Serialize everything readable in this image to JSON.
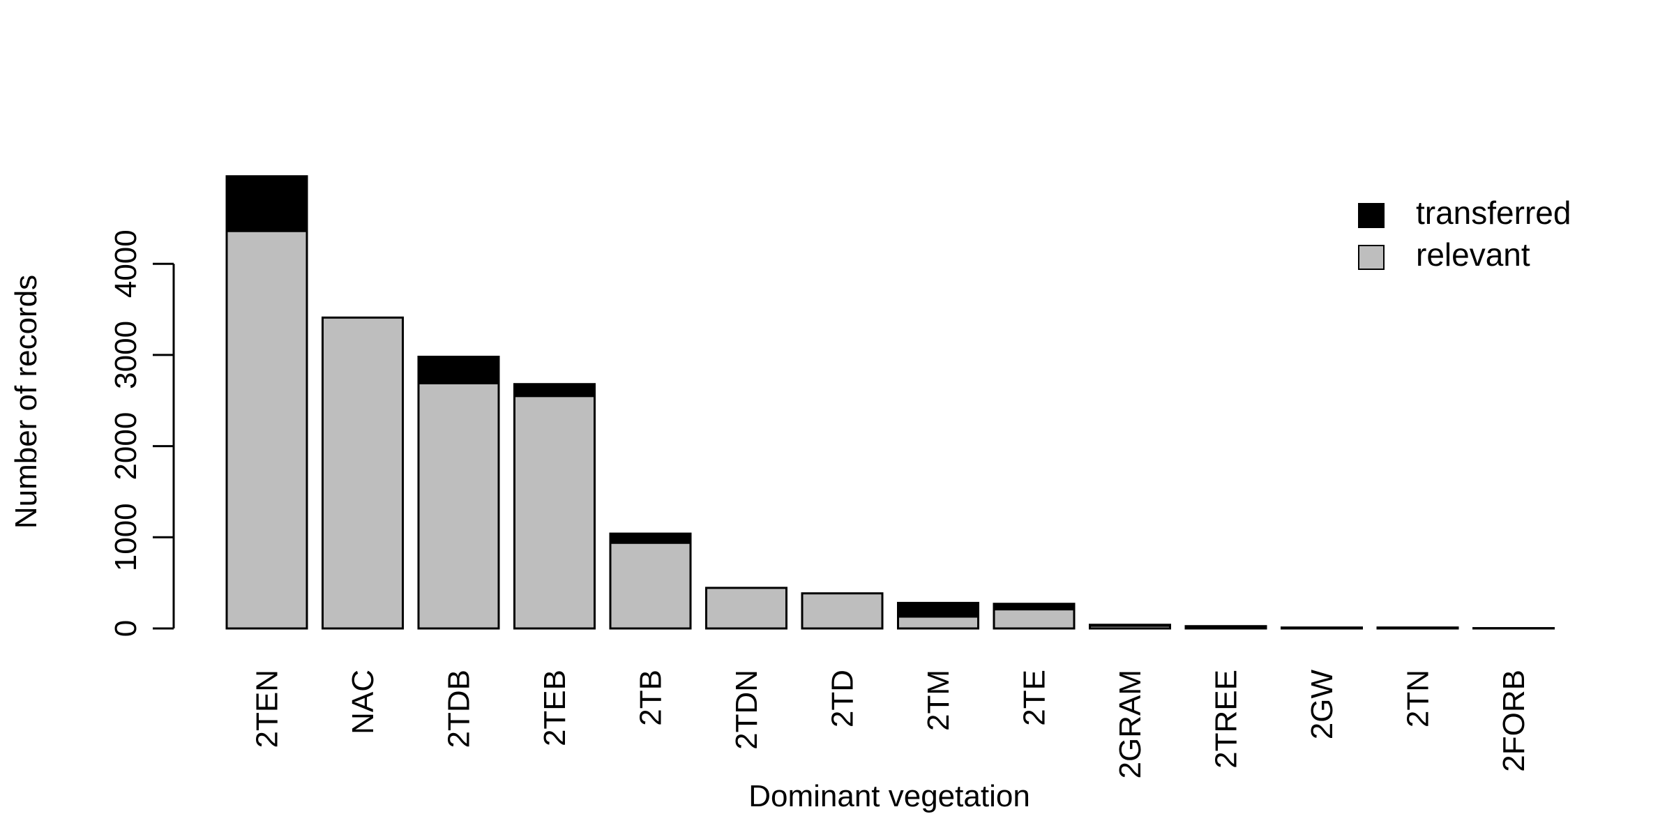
{
  "chart_data": {
    "type": "bar",
    "stacked": true,
    "xlabel": "Dominant vegetation",
    "ylabel": "Number of records",
    "ylim": [
      0,
      5000
    ],
    "yticks": [
      0,
      1000,
      2000,
      3000,
      4000
    ],
    "grid": false,
    "legend_position": "top-right",
    "categories": [
      "2TEN",
      "NAC",
      "2TDB",
      "2TEB",
      "2TB",
      "2TDN",
      "2TD",
      "2TM",
      "2TE",
      "2GRAM",
      "2TREE",
      "2GW",
      "2TN",
      "2FORB"
    ],
    "series": [
      {
        "name": "relevant",
        "color": "#bebebe",
        "values": [
          4360,
          3410,
          2690,
          2550,
          940,
          445,
          385,
          130,
          210,
          30,
          10,
          5,
          5,
          2
        ]
      },
      {
        "name": "transferred",
        "color": "#000000",
        "values": [
          600,
          0,
          290,
          130,
          100,
          0,
          0,
          150,
          60,
          10,
          15,
          5,
          5,
          1
        ]
      }
    ],
    "legend": [
      {
        "label": "transferred",
        "color": "#000000"
      },
      {
        "label": "relevant",
        "color": "#bebebe"
      }
    ]
  }
}
